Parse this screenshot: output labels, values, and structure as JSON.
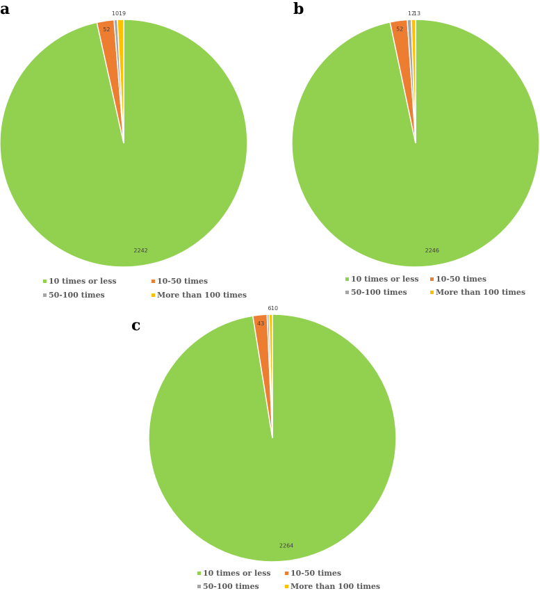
{
  "chart_data": [
    {
      "type": "pie",
      "panel": "a",
      "categories": [
        "10 times or less",
        "10-50 times",
        "50-100 times",
        "More than 100 times"
      ],
      "values": [
        2242,
        52,
        10,
        19
      ],
      "data_labels": [
        "2242",
        "52",
        "10",
        "19"
      ],
      "colors": [
        "#92d050",
        "#ed7d31",
        "#a5a5a5",
        "#ffc000"
      ],
      "legend_placement": "bottom"
    },
    {
      "type": "pie",
      "panel": "b",
      "categories": [
        "10 times or less",
        "10-50 times",
        "50-100 times",
        "More than 100 times"
      ],
      "values": [
        2246,
        52,
        12,
        13
      ],
      "data_labels": [
        "2246",
        "52",
        "12",
        "13"
      ],
      "colors": [
        "#92d050",
        "#ed7d31",
        "#a5a5a5",
        "#ffc000"
      ],
      "legend_placement": "bottom"
    },
    {
      "type": "pie",
      "panel": "c",
      "categories": [
        "10 times or less",
        "10-50 times",
        "50-100 times",
        "More than 100 times"
      ],
      "values": [
        2264,
        43,
        6,
        10
      ],
      "data_labels": [
        "2264",
        "43",
        "6",
        "10"
      ],
      "colors": [
        "#92d050",
        "#ed7d31",
        "#a5a5a5",
        "#ffc000"
      ],
      "legend_placement": "bottom"
    }
  ]
}
